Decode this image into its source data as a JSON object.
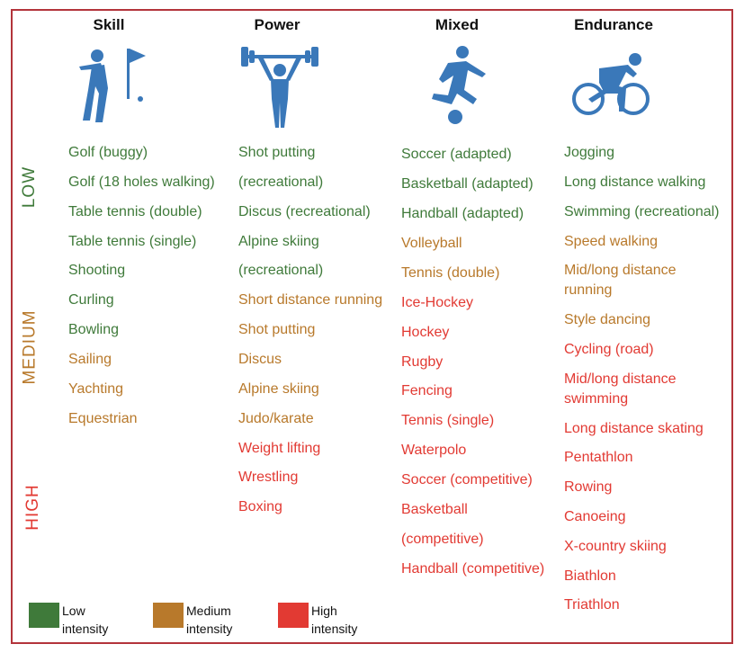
{
  "colors": {
    "low": "#3f7a3a",
    "medium": "#b8792b",
    "high": "#e23a33",
    "icon": "#3a78b9",
    "border": "#b3343b"
  },
  "columns": [
    {
      "header": "Skill",
      "icon": "golfer-icon"
    },
    {
      "header": "Power",
      "icon": "weightlifter-icon"
    },
    {
      "header": "Mixed",
      "icon": "soccer-player-icon"
    },
    {
      "header": "Endurance",
      "icon": "cyclist-icon"
    }
  ],
  "side_labels": {
    "low": "LOW",
    "medium": "MEDIUM",
    "high": "HIGH"
  },
  "skill": [
    {
      "text": "Golf (buggy)",
      "level": "low"
    },
    {
      "text": "Golf (18 holes walking)",
      "level": "low"
    },
    {
      "text": "Table tennis (double)",
      "level": "low"
    },
    {
      "text": "Table tennis (single)",
      "level": "low"
    },
    {
      "text": "Shooting",
      "level": "low"
    },
    {
      "text": "Curling",
      "level": "low"
    },
    {
      "text": "Bowling",
      "level": "low"
    },
    {
      "text": "Sailing",
      "level": "medium"
    },
    {
      "text": "Yachting",
      "level": "medium"
    },
    {
      "text": "Equestrian",
      "level": "medium"
    }
  ],
  "power": [
    {
      "text": "Shot putting",
      "level": "low"
    },
    {
      "text": "(recreational)",
      "level": "low"
    },
    {
      "text": "Discus (recreational)",
      "level": "low"
    },
    {
      "text": "Alpine skiing",
      "level": "low"
    },
    {
      "text": "(recreational)",
      "level": "low"
    },
    {
      "text": "Short distance running",
      "level": "medium"
    },
    {
      "text": "Shot putting",
      "level": "medium"
    },
    {
      "text": "Discus",
      "level": "medium"
    },
    {
      "text": "Alpine skiing",
      "level": "medium"
    },
    {
      "text": "Judo/karate",
      "level": "medium"
    },
    {
      "text": "Weight lifting",
      "level": "high"
    },
    {
      "text": "Wrestling",
      "level": "high"
    },
    {
      "text": "Boxing",
      "level": "high"
    }
  ],
  "mixed": [
    {
      "text": "Soccer (adapted)",
      "level": "low"
    },
    {
      "text": "Basketball (adapted)",
      "level": "low"
    },
    {
      "text": "Handball (adapted)",
      "level": "low"
    },
    {
      "text": "Volleyball",
      "level": "medium"
    },
    {
      "text": "Tennis (double)",
      "level": "medium"
    },
    {
      "text": "Ice-Hockey",
      "level": "high"
    },
    {
      "text": "Hockey",
      "level": "high"
    },
    {
      "text": "Rugby",
      "level": "high"
    },
    {
      "text": "Fencing",
      "level": "high"
    },
    {
      "text": "Tennis (single)",
      "level": "high"
    },
    {
      "text": "Waterpolo",
      "level": "high"
    },
    {
      "text": "Soccer (competitive)",
      "level": "high"
    },
    {
      "text": "Basketball",
      "level": "high"
    },
    {
      "text": "(competitive)",
      "level": "high"
    },
    {
      "text": "Handball (competitive)",
      "level": "high"
    }
  ],
  "endurance": [
    {
      "text": "Jogging",
      "level": "low"
    },
    {
      "text": "Long distance walking",
      "level": "low"
    },
    {
      "text": "Swimming (recreational)",
      "level": "low"
    },
    {
      "text": "Speed walking",
      "level": "medium"
    },
    {
      "text": "Mid/long distance",
      "level": "medium"
    },
    {
      "text": "running",
      "level": "medium"
    },
    {
      "text": "Style dancing",
      "level": "medium"
    },
    {
      "text": "Cycling (road)",
      "level": "high"
    },
    {
      "text": "Mid/long distance",
      "level": "high"
    },
    {
      "text": "swimming",
      "level": "high"
    },
    {
      "text": "Long distance skating",
      "level": "high"
    },
    {
      "text": "Pentathlon",
      "level": "high"
    },
    {
      "text": "Rowing",
      "level": "high"
    },
    {
      "text": "Canoeing",
      "level": "high"
    },
    {
      "text": "X-country skiing",
      "level": "high"
    },
    {
      "text": "Biathlon",
      "level": "high"
    },
    {
      "text": "Triathlon",
      "level": "high"
    }
  ],
  "legend": [
    {
      "line1": "Low",
      "line2": "intensity",
      "level": "low"
    },
    {
      "line1": "Medium",
      "line2": "intensity",
      "level": "medium"
    },
    {
      "line1": "High",
      "line2": "intensity",
      "level": "high"
    }
  ]
}
